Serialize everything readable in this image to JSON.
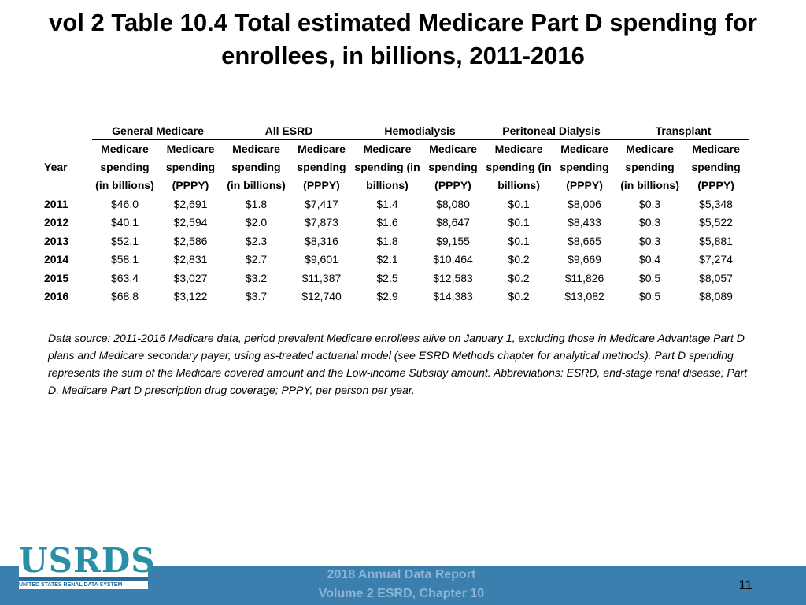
{
  "title": "vol 2 Table 10.4 Total estimated Medicare Part D spending for enrollees, in billions, 2011-2016",
  "table": {
    "year_header": "Year",
    "groups": [
      "General Medicare",
      "All ESRD",
      "Hemodialysis",
      "Peritoneal Dialysis",
      "Transplant"
    ],
    "subheaders": {
      "spending_billions": "Medicare spending (in billions)",
      "spending_pppy": "Medicare spending (PPPY)"
    },
    "rows": [
      {
        "year": "2011",
        "cells": [
          "$46.0",
          "$2,691",
          "$1.8",
          "$7,417",
          "$1.4",
          "$8,080",
          "$0.1",
          "$8,006",
          "$0.3",
          "$5,348"
        ]
      },
      {
        "year": "2012",
        "cells": [
          "$40.1",
          "$2,594",
          "$2.0",
          "$7,873",
          "$1.6",
          "$8,647",
          "$0.1",
          "$8,433",
          "$0.3",
          "$5,522"
        ]
      },
      {
        "year": "2013",
        "cells": [
          "$52.1",
          "$2,586",
          "$2.3",
          "$8,316",
          "$1.8",
          "$9,155",
          "$0.1",
          "$8,665",
          "$0.3",
          "$5,881"
        ]
      },
      {
        "year": "2014",
        "cells": [
          "$58.1",
          "$2,831",
          "$2.7",
          "$9,601",
          "$2.1",
          "$10,464",
          "$0.2",
          "$9,669",
          "$0.4",
          "$7,274"
        ]
      },
      {
        "year": "2015",
        "cells": [
          "$63.4",
          "$3,027",
          "$3.2",
          "$11,387",
          "$2.5",
          "$12,583",
          "$0.2",
          "$11,826",
          "$0.5",
          "$8,057"
        ]
      },
      {
        "year": "2016",
        "cells": [
          "$68.8",
          "$3,122",
          "$3.7",
          "$12,740",
          "$2.9",
          "$14,383",
          "$0.2",
          "$13,082",
          "$0.5",
          "$8,089"
        ]
      }
    ]
  },
  "note": "Data source: 2011-2016 Medicare data, period prevalent Medicare enrollees alive on January 1, excluding those in Medicare Advantage Part D plans and Medicare secondary payer, using as-treated actuarial model (see ESRD Methods chapter for analytical methods). Part D spending represents the sum of the Medicare covered amount and the Low-income Subsidy amount. Abbreviations: ESRD, end-stage renal disease; Part D, Medicare Part D prescription drug coverage; PPPY, per person per year.",
  "footer": {
    "line1": "2018 Annual Data Report",
    "line2": "Volume 2 ESRD, Chapter 10",
    "page_number": "11"
  },
  "logo": {
    "text": "USRDS",
    "subtext": "UNITED STATES RENAL DATA SYSTEM"
  },
  "colors": {
    "footer_bar": "#3a7fae",
    "logo": "#2a8fa6"
  }
}
